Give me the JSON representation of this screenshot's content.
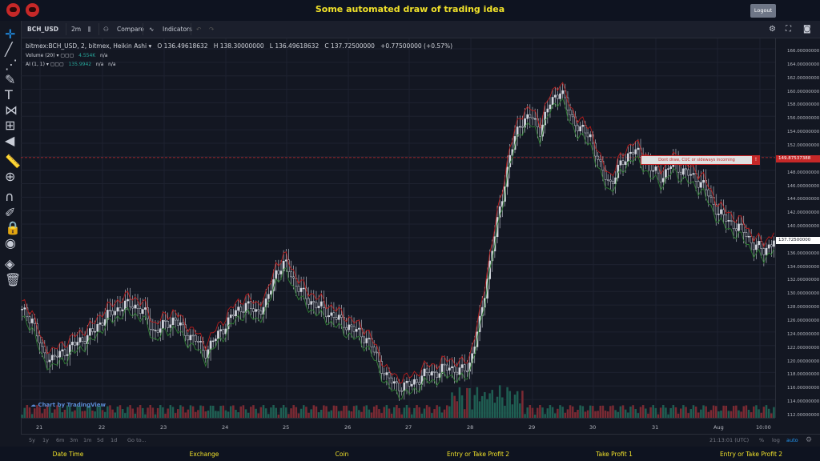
{
  "header": {
    "title": "Some automated draw of trading idea",
    "logout_label": "Logout"
  },
  "toolbar": {
    "symbol": "BCH_USD",
    "interval": "2m",
    "compare_label": "Compare",
    "indicators_label": "Indicators"
  },
  "legend": {
    "main": "bitmex:BCH_USD, 2, bitmex, Heikin Ashi",
    "open": "O 136.49618632",
    "high": "H 138.30000000",
    "low": "L 136.49618632",
    "close": "C 137.72500000",
    "change": "+0.77500000 (+0.57%)",
    "volume_name": "Volume (20)",
    "volume_value": "4.554K",
    "volume_na": "n/a",
    "ai_name": "AI (1, 1)",
    "ai_value": "135.9942",
    "ai_na1": "n/a",
    "ai_na2": "n/a"
  },
  "price_scale": {
    "labels": [
      "166.00000000",
      "164.00000000",
      "162.00000000",
      "160.00000000",
      "158.00000000",
      "156.00000000",
      "154.00000000",
      "152.00000000",
      "150.00000000",
      "148.00000000",
      "146.00000000",
      "144.00000000",
      "142.00000000",
      "140.00000000",
      "138.00000000",
      "136.00000000",
      "134.00000000",
      "132.00000000",
      "130.00000000",
      "128.00000000",
      "126.00000000",
      "124.00000000",
      "122.00000000",
      "120.00000000",
      "118.00000000",
      "116.00000000",
      "114.00000000",
      "112.00000000"
    ],
    "line_price": "149.87537388",
    "current_price": "137.72500000"
  },
  "time_scale": {
    "labels": [
      "21",
      "22",
      "23",
      "24",
      "25",
      "26",
      "27",
      "28",
      "29",
      "30",
      "31",
      "Aug",
      "10:00"
    ]
  },
  "annotation": {
    "text": "Dont draw, CUC or sideways incoming",
    "bang": "!"
  },
  "watermark": "Chart by TradingView",
  "bottombar": {
    "ranges": [
      "5y",
      "1y",
      "6m",
      "3m",
      "1m",
      "5d",
      "1d"
    ],
    "goto": "Go to...",
    "time": "21:13:01 (UTC)",
    "percent": "%",
    "log": "log",
    "auto": "auto"
  },
  "footer": {
    "columns": [
      "Date Time",
      "Exchange",
      "Coin",
      "Entry or Take Profit 2",
      "Take Profit 1",
      "Entry or Take Profit 2"
    ]
  },
  "colors": {
    "up": "#26a69a",
    "down": "#ef5350",
    "candle": "#d1d4dc",
    "accent": "#f0e12a",
    "line_red": "#c62828"
  },
  "chart_data": {
    "type": "line",
    "title": "",
    "ylim": [
      111,
      167
    ],
    "series": [
      {
        "values": [
          127,
          126,
          121,
          120,
          121,
          122,
          123,
          124,
          126,
          127,
          128,
          128,
          127,
          124,
          125,
          126,
          124,
          123,
          121,
          123,
          125,
          127,
          128,
          127,
          128,
          133,
          134,
          131,
          129,
          128,
          127,
          126,
          125,
          124,
          123,
          120,
          117,
          116,
          116,
          117,
          118,
          118,
          119,
          118,
          119,
          125,
          134,
          142,
          150,
          155,
          156,
          154,
          158,
          160,
          156,
          154,
          153,
          148,
          146,
          149,
          151,
          150,
          148,
          147,
          149,
          148,
          147,
          146,
          143,
          141,
          140,
          139,
          137,
          136,
          137.7
        ]
      }
    ]
  }
}
